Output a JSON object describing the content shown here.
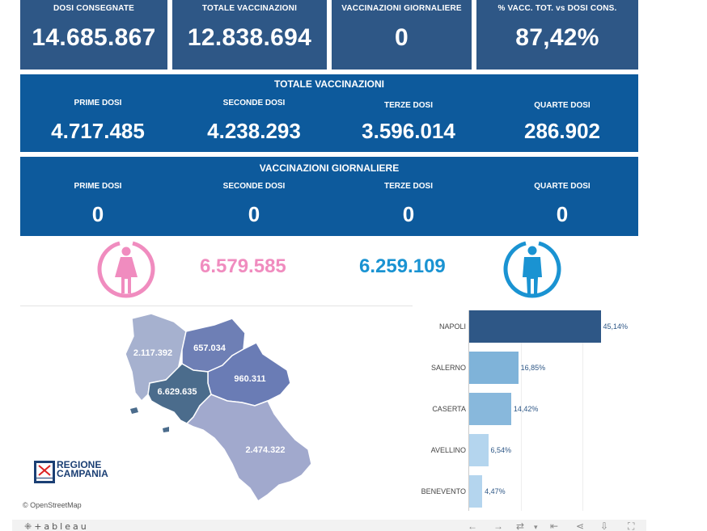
{
  "kpis": [
    {
      "label": "DOSI  CONSEGNATE",
      "value": "14.685.867"
    },
    {
      "label": "TOTALE VACCINAZIONI",
      "value": "12.838.694"
    },
    {
      "label": "VACCINAZIONI GIORNALIERE",
      "value": "0"
    },
    {
      "label": "% VACC. TOT. vs DOSI CONS.",
      "value": "87,42%"
    }
  ],
  "totale": {
    "title": "TOTALE VACCINAZIONI",
    "cells": [
      {
        "label": "PRIME DOSI",
        "value": "4.717.485"
      },
      {
        "label": "SECONDE DOSI",
        "value": "4.238.293"
      },
      {
        "label": "TERZE DOSI",
        "value": "3.596.014"
      },
      {
        "label": "QUARTE DOSI",
        "value": "286.902"
      }
    ]
  },
  "giornaliere": {
    "title": "VACCINAZIONI GIORNALIERE",
    "cells": [
      {
        "label": "PRIME DOSI",
        "value": "0"
      },
      {
        "label": "SECONDE DOSI",
        "value": "0"
      },
      {
        "label": "TERZE DOSI",
        "value": "0"
      },
      {
        "label": "QUARTE DOSI",
        "value": "0"
      }
    ]
  },
  "gender": {
    "female_value": "6.579.585",
    "male_value": "6.259.109",
    "female_color": "#f08cbf",
    "male_color": "#1a93d2"
  },
  "map": {
    "regions": [
      {
        "name": "caserta",
        "value": "2.117.392"
      },
      {
        "name": "benevento",
        "value": "657.034"
      },
      {
        "name": "avellino",
        "value": "960.311"
      },
      {
        "name": "napoli",
        "value": "6.629.635"
      },
      {
        "name": "salerno",
        "value": "2.474.322"
      }
    ],
    "attribution": "© OpenStreetMap",
    "logo_line1": "REGIONE",
    "logo_line2": "CAMPANIA"
  },
  "chart_data": {
    "type": "bar",
    "orientation": "horizontal",
    "categories": [
      "NAPOLI",
      "SALERNO",
      "CASERTA",
      "AVELLINO",
      "BENEVENTO"
    ],
    "values": [
      45.14,
      16.85,
      14.42,
      6.54,
      4.47
    ],
    "labels": [
      "45,14%",
      "16,85%",
      "14,42%",
      "6,54%",
      "4,47%"
    ],
    "colors": [
      "#2e5786",
      "#7fb3d9",
      "#88b8dc",
      "#b4d5ee",
      "#b4d5ee"
    ],
    "xlim": [
      0,
      50
    ]
  },
  "footer": {
    "brand": "+ableau"
  }
}
